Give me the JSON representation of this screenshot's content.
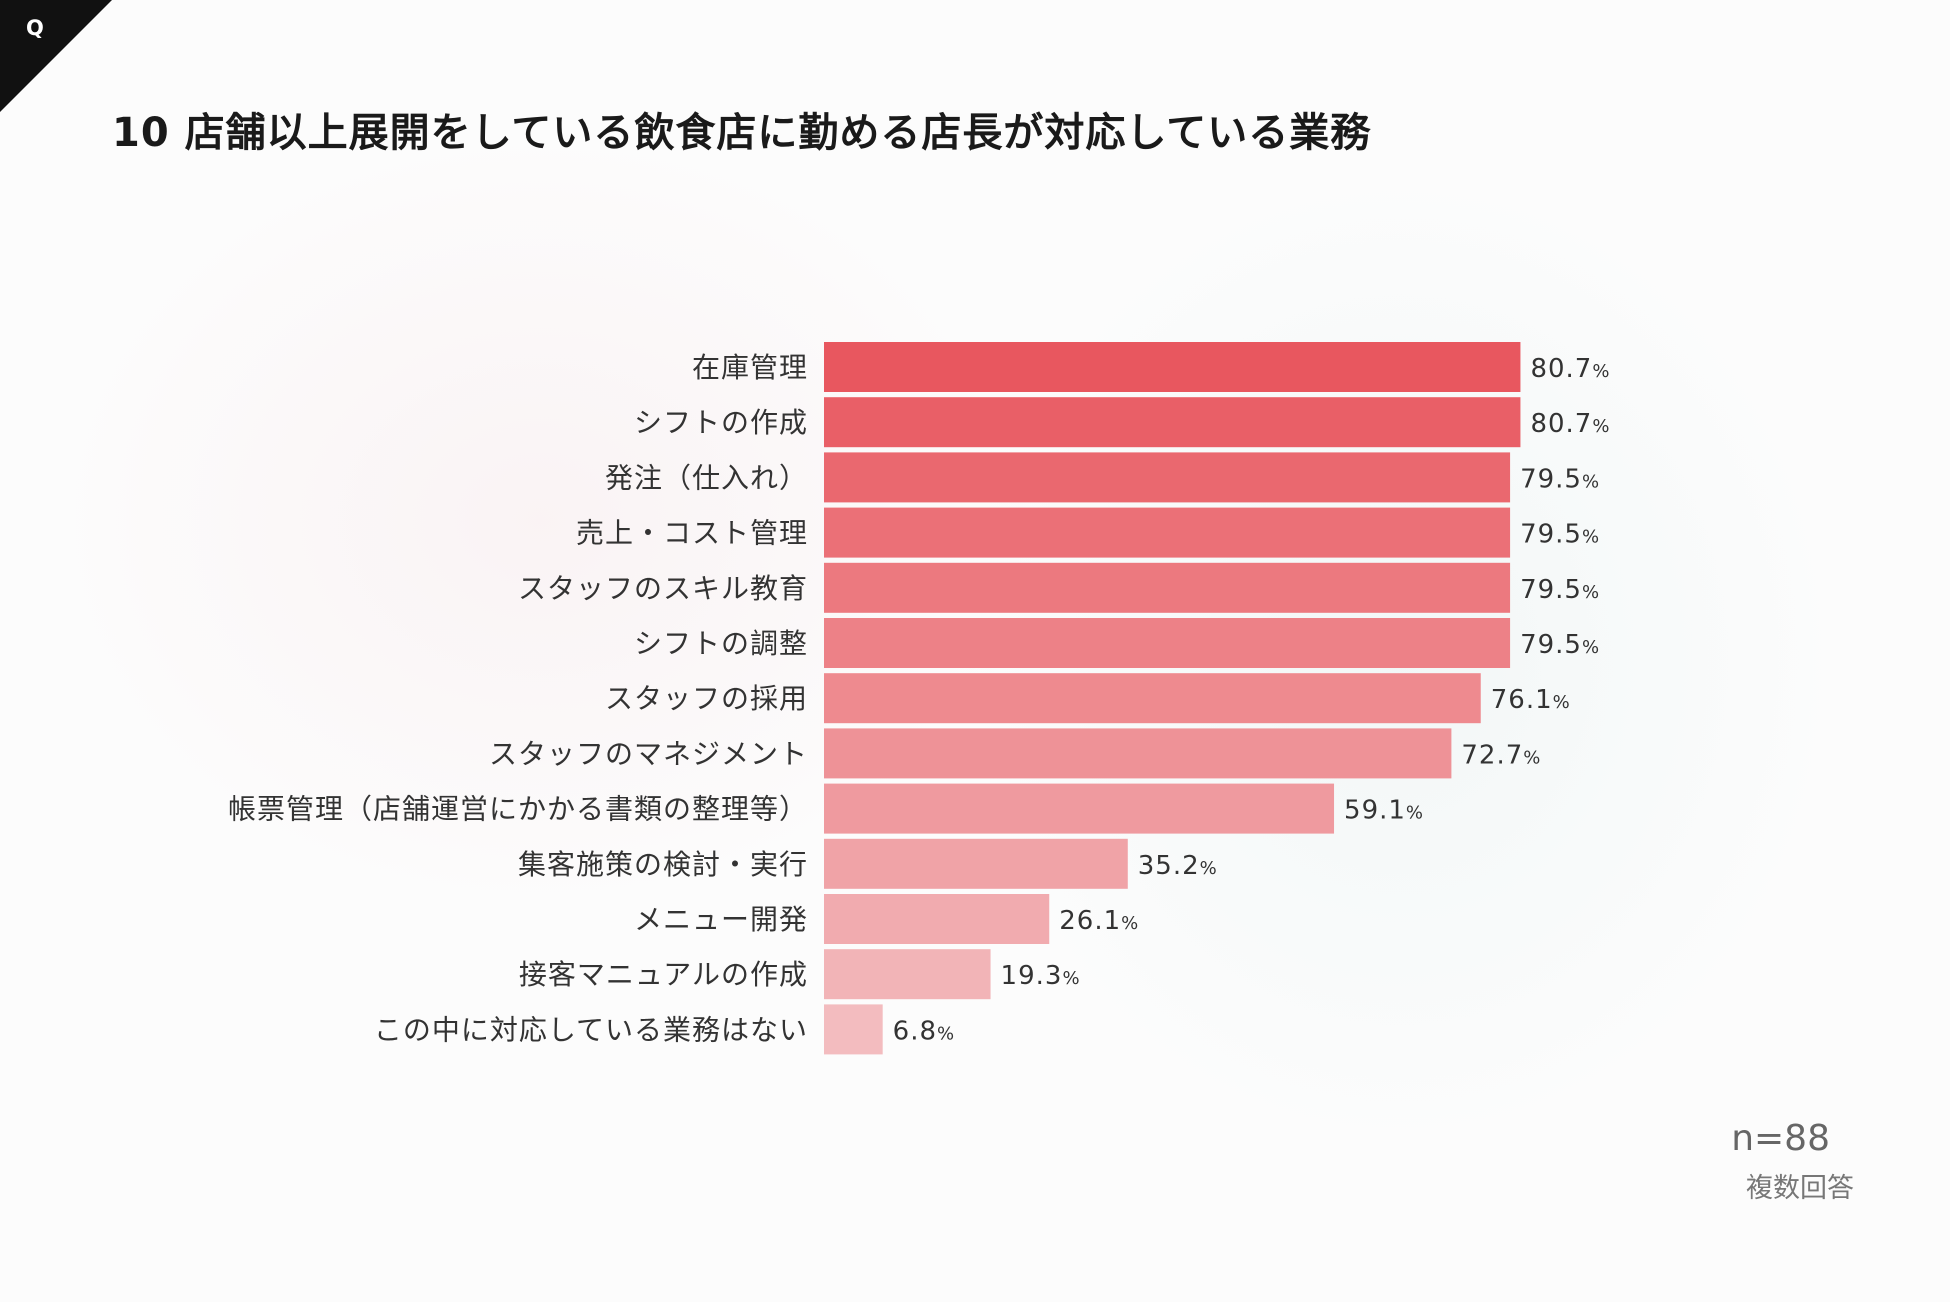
{
  "header": {
    "badge": "Q",
    "title": "10 店舗以上展開をしている飲食店に勤める店長が対応している業務"
  },
  "footer": {
    "n_label": "n=88",
    "note": "複数回答"
  },
  "colors": {
    "bar_high": "#e8575f",
    "bar_low": "#f3bcbf",
    "corner": "#111111"
  },
  "chart_data": {
    "type": "bar",
    "orientation": "horizontal",
    "unit": "%",
    "categories": [
      "在庫管理",
      "シフトの作成",
      "発注（仕入れ）",
      "売上・コスト管理",
      "スタッフのスキル教育",
      "シフトの調整",
      "スタッフの採用",
      "スタッフのマネジメント",
      "帳票管理（店舗運営にかかる書類の整理等）",
      "集客施策の検討・実行",
      "メニュー開発",
      "接客マニュアルの作成",
      "この中に対応している業務はない"
    ],
    "values": [
      80.7,
      80.7,
      79.5,
      79.5,
      79.5,
      79.5,
      76.1,
      72.7,
      59.1,
      35.2,
      26.1,
      19.3,
      6.8
    ],
    "value_labels": [
      "80.7",
      "80.7",
      "79.5",
      "79.5",
      "79.5",
      "79.5",
      "76.1",
      "72.7",
      "59.1",
      "35.2",
      "26.1",
      "19.3",
      "6.8"
    ],
    "xlim": [
      0,
      100
    ],
    "grid": false,
    "legend": "none"
  }
}
